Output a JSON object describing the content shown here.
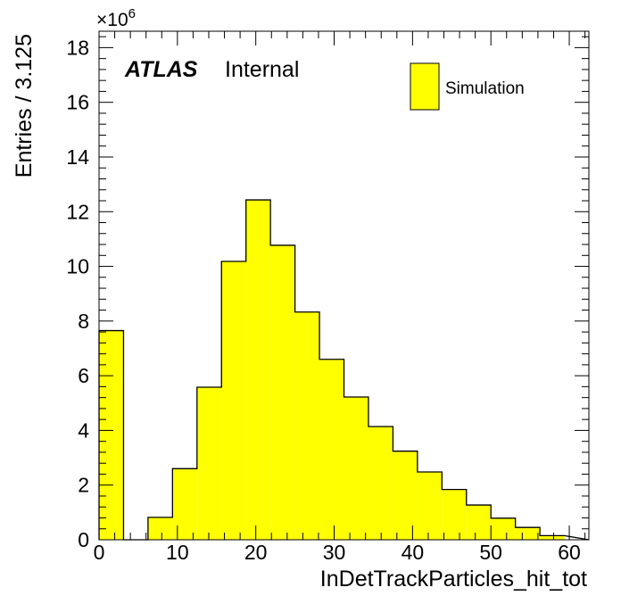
{
  "chart_data": {
    "type": "bar",
    "histogram": true,
    "bin_width": 3.125,
    "bin_edges": [
      0,
      3.125,
      6.25,
      9.375,
      12.5,
      15.625,
      18.75,
      21.875,
      25,
      28.125,
      31.25,
      34.375,
      37.5,
      40.625,
      43.75,
      46.875,
      50,
      53.125,
      56.25,
      59.375
    ],
    "values": [
      7.65,
      0,
      0.82,
      2.6,
      5.58,
      10.18,
      12.43,
      10.77,
      8.33,
      6.6,
      5.22,
      4.14,
      3.24,
      2.48,
      1.84,
      1.27,
      0.79,
      0.45,
      0.15
    ],
    "series": [
      {
        "name": "Simulation",
        "color": "#ffff00"
      }
    ],
    "xlabel": "InDetTrackParticles_hit_tot",
    "ylabel": "Entries / 3.125",
    "multiplier_base": "×10",
    "multiplier_exp": "6",
    "xlim": [
      0,
      62.5
    ],
    "ylim": [
      0,
      18.6
    ],
    "x_ticks": [
      "0",
      "10",
      "20",
      "30",
      "40",
      "50",
      "60"
    ],
    "y_ticks": [
      "0",
      "2",
      "4",
      "6",
      "8",
      "10",
      "12",
      "14",
      "16",
      "18"
    ],
    "grid": false,
    "legend_position": "top-right",
    "experiment_label": "ATLAS",
    "status_label": "Internal"
  }
}
